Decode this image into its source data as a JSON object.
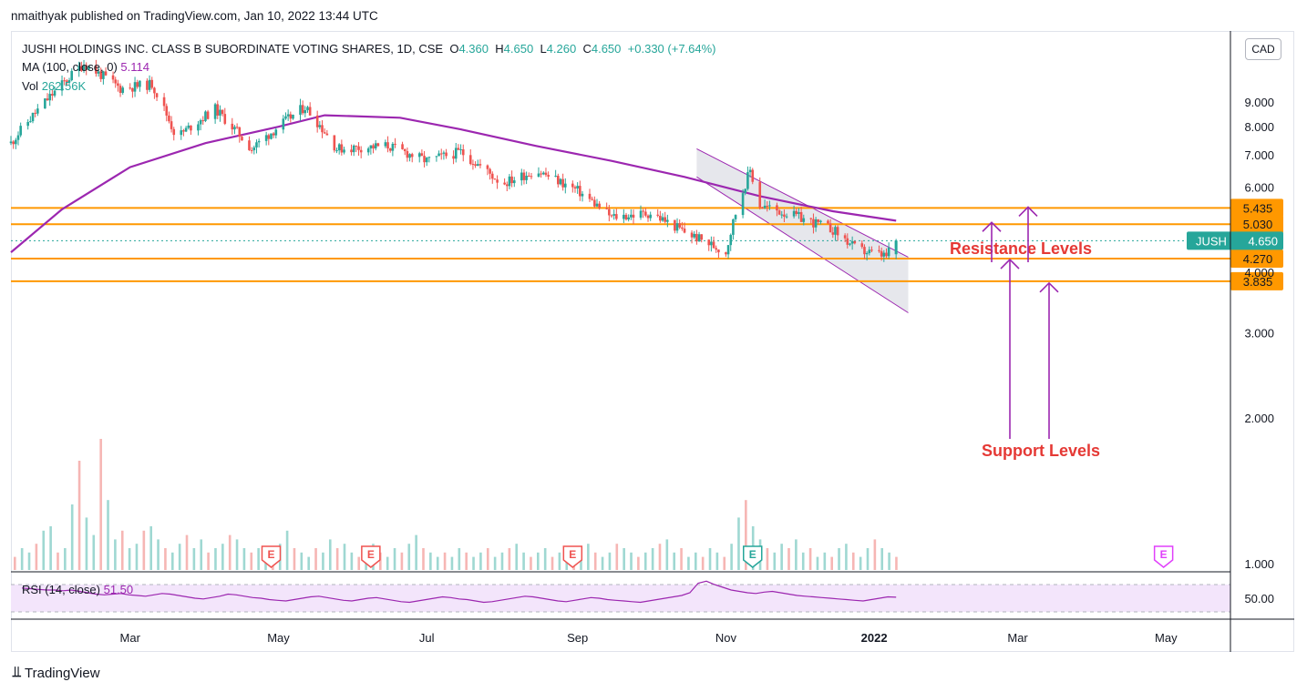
{
  "publish_line": "nmaithyak published on TradingView.com, Jan 10, 2022 13:44 UTC",
  "legend": {
    "symbol_line": "JUSHI HOLDINGS INC. CLASS B SUBORDINATE VOTING SHARES, 1D, CSE",
    "open_label": "O",
    "open": "4.360",
    "high_label": "H",
    "high": "4.650",
    "low_label": "L",
    "low": "4.260",
    "close_label": "C",
    "close": "4.650",
    "change": "+0.330 (+7.64%)",
    "ma_label": "MA (100, close, 0)",
    "ma_value": "5.114",
    "vol_label": "Vol",
    "vol_value": "262.56K",
    "rsi_label": "RSI (14, close)",
    "rsi_value": "51.50"
  },
  "currency_badge": "CAD",
  "footer_brand": "TradingView",
  "colors": {
    "up": "#26a69a",
    "down": "#ef5350",
    "ma": "#9c27b0",
    "level": "#ff9800",
    "annotation_text": "#e53935",
    "arrow": "#9c27b0",
    "rsi_band": "#f3e5fb",
    "channel_fill": "#d1d4dc"
  },
  "chart_data": {
    "type": "candlestick",
    "symbol": "JUSH",
    "title": "JUSHI HOLDINGS INC. CLASS B SUBORDINATE VOTING SHARES",
    "interval": "1D",
    "exchange": "CSE",
    "currency": "CAD",
    "y_scale": "log",
    "ylim": [
      0.95,
      11.0
    ],
    "y_ticks": [
      "1.000",
      "2.000",
      "3.000",
      "4.000",
      "6.000",
      "7.000",
      "8.000",
      "9.000"
    ],
    "x_ticks": [
      "Mar",
      "May",
      "Jul",
      "Sep",
      "Nov",
      "2022",
      "Mar",
      "May"
    ],
    "price_path": [
      {
        "date": "2021-01-11",
        "price": 7.4
      },
      {
        "date": "2021-01-25",
        "price": 9.0
      },
      {
        "date": "2021-02-10",
        "price": 10.8
      },
      {
        "date": "2021-02-25",
        "price": 9.6
      },
      {
        "date": "2021-03-10",
        "price": 9.8
      },
      {
        "date": "2021-03-20",
        "price": 7.6
      },
      {
        "date": "2021-04-05",
        "price": 8.7
      },
      {
        "date": "2021-04-20",
        "price": 7.2
      },
      {
        "date": "2021-05-05",
        "price": 8.3
      },
      {
        "date": "2021-05-12",
        "price": 8.8
      },
      {
        "date": "2021-05-25",
        "price": 7.2
      },
      {
        "date": "2021-06-15",
        "price": 7.3
      },
      {
        "date": "2021-07-01",
        "price": 6.8
      },
      {
        "date": "2021-07-15",
        "price": 7.1
      },
      {
        "date": "2021-08-01",
        "price": 6.1
      },
      {
        "date": "2021-08-15",
        "price": 6.5
      },
      {
        "date": "2021-09-01",
        "price": 5.9
      },
      {
        "date": "2021-09-15",
        "price": 5.2
      },
      {
        "date": "2021-10-01",
        "price": 5.3
      },
      {
        "date": "2021-10-15",
        "price": 4.85
      },
      {
        "date": "2021-11-01",
        "price": 4.4
      },
      {
        "date": "2021-11-05",
        "price": 5.3
      },
      {
        "date": "2021-11-11",
        "price": 6.5
      },
      {
        "date": "2021-11-15",
        "price": 5.5
      },
      {
        "date": "2021-12-01",
        "price": 5.2
      },
      {
        "date": "2021-12-15",
        "price": 4.9
      },
      {
        "date": "2021-12-25",
        "price": 4.45
      },
      {
        "date": "2022-01-06",
        "price": 4.32
      },
      {
        "date": "2022-01-10",
        "price": 4.65
      }
    ],
    "last_candle": {
      "open": 4.36,
      "high": 4.65,
      "low": 4.26,
      "close": 4.65,
      "change": 0.33,
      "change_pct": 7.64
    },
    "moving_average": {
      "name": "MA (100, close, 0)",
      "last": 5.114,
      "points": [
        {
          "date": "2021-01-11",
          "value": 4.4
        },
        {
          "date": "2021-02-01",
          "value": 5.4
        },
        {
          "date": "2021-03-01",
          "value": 6.6
        },
        {
          "date": "2021-04-01",
          "value": 7.4
        },
        {
          "date": "2021-05-01",
          "value": 8.0
        },
        {
          "date": "2021-05-20",
          "value": 8.45
        },
        {
          "date": "2021-06-20",
          "value": 8.35
        },
        {
          "date": "2021-07-15",
          "value": 7.9
        },
        {
          "date": "2021-08-15",
          "value": 7.3
        },
        {
          "date": "2021-09-15",
          "value": 6.8
        },
        {
          "date": "2021-10-15",
          "value": 6.3
        },
        {
          "date": "2021-11-15",
          "value": 5.75
        },
        {
          "date": "2021-12-15",
          "value": 5.35
        },
        {
          "date": "2022-01-10",
          "value": 5.114
        }
      ]
    },
    "horizontal_levels": [
      {
        "label": "5.435",
        "value": 5.435
      },
      {
        "label": "5.030",
        "value": 5.03
      },
      {
        "label": "4.270",
        "value": 4.27
      },
      {
        "label": "3.835",
        "value": 3.835
      }
    ],
    "last_price_badge": {
      "symbol": "JUSH",
      "value": "4.650"
    },
    "descending_channel": {
      "upper": [
        {
          "date": "2021-10-20",
          "price": 7.2
        },
        {
          "date": "2022-01-15",
          "price": 4.3
        }
      ],
      "lower": [
        {
          "date": "2021-10-20",
          "price": 6.3
        },
        {
          "date": "2022-01-15",
          "price": 3.3
        }
      ]
    },
    "annotations": [
      {
        "text": "Resistance Levels",
        "arrows": "down",
        "targets": [
          5.03,
          5.435
        ]
      },
      {
        "text": "Support Levels",
        "arrows": "up",
        "targets": [
          4.27,
          3.835
        ]
      }
    ],
    "volume": {
      "label": "Vol",
      "last": "262.56K",
      "relative_bars": [
        0.3,
        0.5,
        0.4,
        0.6,
        0.9,
        1.0,
        0.4,
        0.5,
        1.5,
        2.5,
        1.2,
        0.8,
        3.0,
        1.6,
        0.7,
        0.9,
        0.5,
        0.6,
        0.9,
        1.0,
        0.7,
        0.5,
        0.4,
        0.6,
        0.8,
        0.5,
        0.7,
        0.4,
        0.5,
        0.6,
        0.8,
        0.7,
        0.5,
        0.4,
        0.5,
        0.3,
        0.4,
        0.6,
        0.9,
        0.5,
        0.4,
        0.3,
        0.5,
        0.4,
        0.7,
        0.5,
        0.6,
        0.4,
        0.3,
        0.5,
        0.6,
        0.4,
        0.3,
        0.5,
        0.4,
        0.6,
        0.8,
        0.5,
        0.4,
        0.3,
        0.4,
        0.3,
        0.5,
        0.4,
        0.3,
        0.4,
        0.5,
        0.3,
        0.4,
        0.5,
        0.6,
        0.4,
        0.3,
        0.4,
        0.5,
        0.3,
        0.4,
        0.3,
        0.5,
        0.4,
        0.6,
        0.4,
        0.3,
        0.4,
        0.6,
        0.5,
        0.4,
        0.3,
        0.4,
        0.5,
        0.6,
        0.7,
        0.4,
        0.5,
        0.3,
        0.4,
        0.3,
        0.5,
        0.4,
        0.3,
        0.6,
        1.2,
        1.6,
        1.0,
        0.7,
        0.5,
        0.4,
        0.6,
        0.5,
        0.7,
        0.4,
        0.5,
        0.3,
        0.4,
        0.3,
        0.5,
        0.6,
        0.4,
        0.3,
        0.5,
        0.7,
        0.5,
        0.4,
        0.3
      ]
    },
    "earnings_markers": [
      {
        "date": "2021-04-28",
        "label": "E",
        "kind": "past"
      },
      {
        "date": "2021-06-08",
        "label": "E",
        "kind": "past"
      },
      {
        "date": "2021-08-30",
        "label": "E",
        "kind": "past"
      },
      {
        "date": "2021-11-12",
        "label": "E",
        "kind": "past-beat"
      },
      {
        "date": "2022-04-30",
        "label": "E",
        "kind": "upcoming"
      }
    ],
    "rsi": {
      "label": "RSI (14, close)",
      "last": 51.5,
      "axis_tick": "50.00",
      "upper_band": 70,
      "lower_band": 30,
      "path": [
        65,
        64,
        63,
        62,
        62,
        61,
        62,
        60,
        58,
        56,
        55,
        56,
        57,
        55,
        54,
        53,
        55,
        57,
        56,
        54,
        52,
        50,
        49,
        51,
        53,
        56,
        55,
        53,
        51,
        50,
        48,
        47,
        46,
        48,
        50,
        52,
        53,
        51,
        49,
        47,
        46,
        48,
        50,
        51,
        49,
        47,
        45,
        44,
        46,
        48,
        50,
        52,
        51,
        49,
        48,
        46,
        44,
        45,
        47,
        49,
        51,
        53,
        52,
        50,
        48,
        46,
        45,
        47,
        49,
        51,
        50,
        48,
        47,
        46,
        45,
        44,
        46,
        48,
        50,
        52,
        54,
        58,
        72,
        75,
        70,
        66,
        62,
        60,
        58,
        57,
        59,
        60,
        58,
        56,
        54,
        53,
        52,
        51,
        50,
        49,
        48,
        47,
        46,
        48,
        50,
        52,
        51.5
      ]
    }
  }
}
